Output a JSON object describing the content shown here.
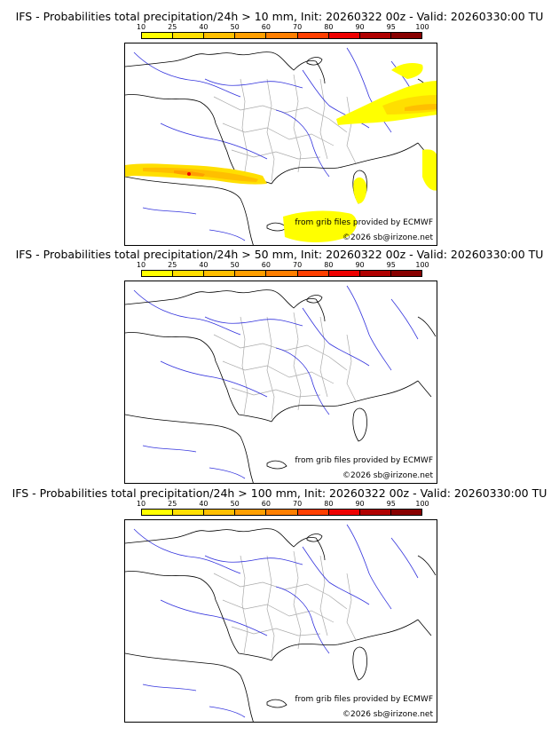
{
  "panels": [
    {
      "title": "IFS - Probabilities total precipitation/24h > 10 mm, Init: 20260322 00z - Valid: 20260330:00 TU",
      "threshold_mm": 10,
      "credit_line1": "from grib files provided by ECMWF",
      "credit_line2": "©2026 sb@irizone.net",
      "fields": [
        {
          "region": "Pyrenees band",
          "max_probability": 80
        },
        {
          "region": "Alps / Switzerland",
          "max_probability": 40
        },
        {
          "region": "Mediterranean south of Provence",
          "max_probability": 25
        },
        {
          "region": "Corsica",
          "max_probability": 25
        }
      ]
    },
    {
      "title": "IFS - Probabilities total precipitation/24h > 50 mm, Init: 20260322 00z - Valid: 20260330:00 TU",
      "threshold_mm": 50,
      "credit_line1": "from grib files provided by ECMWF",
      "credit_line2": "©2026 sb@irizone.net",
      "fields": []
    },
    {
      "title": "IFS - Probabilities total precipitation/24h > 100 mm, Init: 20260322 00z - Valid: 20260330:00 TU",
      "threshold_mm": 100,
      "credit_line1": "from grib files provided by ECMWF",
      "credit_line2": "©2026 sb@irizone.net",
      "fields": []
    }
  ],
  "legend": {
    "ticks": [
      "10",
      "25",
      "40",
      "50",
      "60",
      "70",
      "80",
      "90",
      "95",
      "100"
    ],
    "colors": [
      "#ffff00",
      "#ffdf00",
      "#ffbf00",
      "#ff9f00",
      "#ff7f00",
      "#ff3f00",
      "#ee0000",
      "#b00000",
      "#880000"
    ]
  },
  "map_colors": {
    "coast": "#000000",
    "rivers": "#3333dd",
    "departments": "#aaaaaa"
  }
}
